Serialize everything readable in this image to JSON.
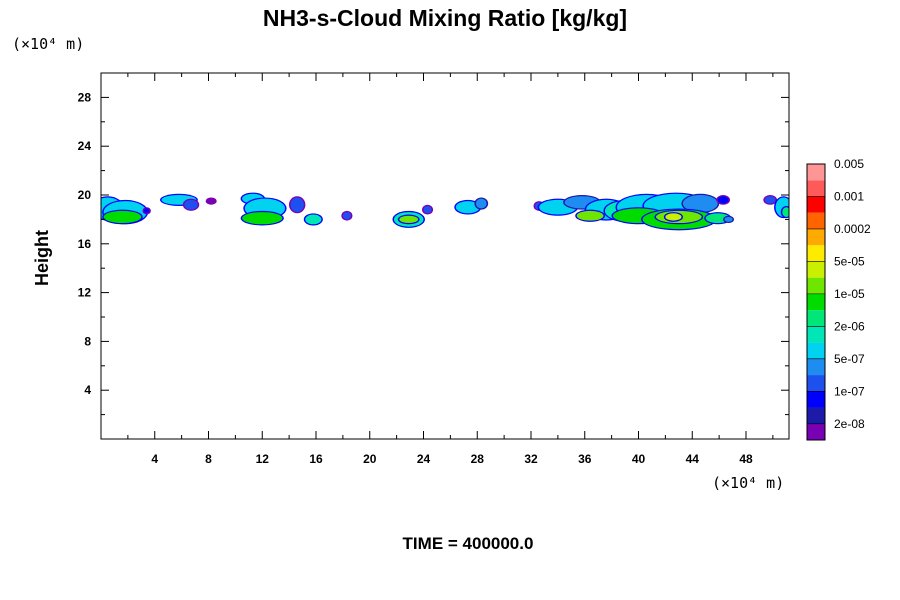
{
  "chart_data": {
    "type": "heatmap",
    "title": "NH3-s-Cloud Mixing Ratio [kg/kg]",
    "ylabel": "Height",
    "xlabel": "",
    "x_unit_label": "(×10⁴ m)",
    "y_unit_label": "(×10⁴ m)",
    "footer": "TIME = 400000.0",
    "xlim": [
      0,
      51.2
    ],
    "ylim": [
      0,
      30
    ],
    "x_ticks": [
      4,
      8,
      12,
      16,
      20,
      24,
      28,
      32,
      36,
      40,
      44,
      48
    ],
    "x_tick_labels": [
      "4",
      "8",
      "12",
      "16",
      "20",
      "24",
      "28",
      "32",
      "36",
      "40",
      "44",
      "48"
    ],
    "y_ticks": [
      4,
      8,
      12,
      16,
      20,
      24,
      28
    ],
    "y_tick_labels": [
      "4",
      "8",
      "12",
      "16",
      "20",
      "24",
      "28"
    ],
    "colorbar": {
      "colors": [
        "#7a00b4",
        "#1c1aa8",
        "#0000ff",
        "#1e50f0",
        "#1e8cf0",
        "#00d2f0",
        "#00e6b4",
        "#00e678",
        "#00dc00",
        "#6ee600",
        "#c8f000",
        "#ffeb00",
        "#ffaa00",
        "#ff6400",
        "#ff0000",
        "#ff5a5a",
        "#ff9696"
      ],
      "labels": [
        "2e-08",
        "1e-07",
        "5e-07",
        "2e-06",
        "1e-05",
        "5e-05",
        "0.0002",
        "0.001",
        "0.005"
      ]
    },
    "cloud_patches": [
      {
        "x": 0.5,
        "y": 18.9,
        "rx": 1.1,
        "ry": 0.9,
        "level": 5
      },
      {
        "x": 1.8,
        "y": 18.6,
        "rx": 1.6,
        "ry": 0.9,
        "level": 5
      },
      {
        "x": 1.6,
        "y": 18.2,
        "rx": 1.4,
        "ry": 0.5,
        "level": 8
      },
      {
        "x": 3.4,
        "y": 18.7,
        "rx": 0.2,
        "ry": 0.2,
        "level": 2
      },
      {
        "x": 5.8,
        "y": 19.6,
        "rx": 1.3,
        "ry": 0.4,
        "level": 5
      },
      {
        "x": 6.7,
        "y": 19.2,
        "rx": 0.5,
        "ry": 0.4,
        "level": 3
      },
      {
        "x": 8.2,
        "y": 19.5,
        "rx": 0.3,
        "ry": 0.2,
        "level": 0
      },
      {
        "x": 11.3,
        "y": 19.7,
        "rx": 0.8,
        "ry": 0.4,
        "level": 5
      },
      {
        "x": 12.2,
        "y": 18.9,
        "rx": 1.5,
        "ry": 0.8,
        "level": 5
      },
      {
        "x": 12.0,
        "y": 18.1,
        "rx": 1.5,
        "ry": 0.5,
        "level": 8
      },
      {
        "x": 14.6,
        "y": 19.2,
        "rx": 0.5,
        "ry": 0.6,
        "level": 3
      },
      {
        "x": 15.8,
        "y": 18.0,
        "rx": 0.6,
        "ry": 0.4,
        "level": 6
      },
      {
        "x": 18.3,
        "y": 18.3,
        "rx": 0.3,
        "ry": 0.3,
        "level": 3
      },
      {
        "x": 22.9,
        "y": 18.0,
        "rx": 1.1,
        "ry": 0.6,
        "level": 6
      },
      {
        "x": 22.9,
        "y": 18.0,
        "rx": 0.7,
        "ry": 0.3,
        "level": 9
      },
      {
        "x": 24.3,
        "y": 18.8,
        "rx": 0.3,
        "ry": 0.3,
        "level": 3
      },
      {
        "x": 27.3,
        "y": 19.0,
        "rx": 0.9,
        "ry": 0.5,
        "level": 5
      },
      {
        "x": 28.3,
        "y": 19.3,
        "rx": 0.4,
        "ry": 0.4,
        "level": 4
      },
      {
        "x": 32.6,
        "y": 19.1,
        "rx": 0.3,
        "ry": 0.3,
        "level": 3
      },
      {
        "x": 34.0,
        "y": 19.0,
        "rx": 1.4,
        "ry": 0.6,
        "level": 5
      },
      {
        "x": 35.8,
        "y": 19.4,
        "rx": 1.3,
        "ry": 0.5,
        "level": 4
      },
      {
        "x": 37.6,
        "y": 18.8,
        "rx": 1.5,
        "ry": 0.8,
        "level": 5
      },
      {
        "x": 36.4,
        "y": 18.3,
        "rx": 1.0,
        "ry": 0.4,
        "level": 9
      },
      {
        "x": 39.0,
        "y": 18.7,
        "rx": 1.5,
        "ry": 0.8,
        "level": 6
      },
      {
        "x": 40.6,
        "y": 19.0,
        "rx": 2.2,
        "ry": 1.0,
        "level": 5
      },
      {
        "x": 42.8,
        "y": 19.1,
        "rx": 2.4,
        "ry": 1.0,
        "level": 5
      },
      {
        "x": 44.6,
        "y": 19.3,
        "rx": 1.3,
        "ry": 0.7,
        "level": 4
      },
      {
        "x": 40.0,
        "y": 18.3,
        "rx": 1.9,
        "ry": 0.6,
        "level": 8
      },
      {
        "x": 43.0,
        "y": 18.0,
        "rx": 2.7,
        "ry": 0.8,
        "level": 8
      },
      {
        "x": 43.0,
        "y": 18.2,
        "rx": 1.7,
        "ry": 0.5,
        "level": 9
      },
      {
        "x": 42.6,
        "y": 18.2,
        "rx": 0.6,
        "ry": 0.3,
        "level": 10
      },
      {
        "x": 45.9,
        "y": 18.1,
        "rx": 0.9,
        "ry": 0.4,
        "level": 7
      },
      {
        "x": 46.7,
        "y": 18.0,
        "rx": 0.3,
        "ry": 0.2,
        "level": 4
      },
      {
        "x": 46.3,
        "y": 19.6,
        "rx": 0.4,
        "ry": 0.3,
        "level": 2
      },
      {
        "x": 49.8,
        "y": 19.6,
        "rx": 0.4,
        "ry": 0.3,
        "level": 3
      },
      {
        "x": 50.8,
        "y": 19.0,
        "rx": 0.6,
        "ry": 0.8,
        "level": 5
      },
      {
        "x": 51.0,
        "y": 18.6,
        "rx": 0.3,
        "ry": 0.4,
        "level": 7
      }
    ]
  }
}
